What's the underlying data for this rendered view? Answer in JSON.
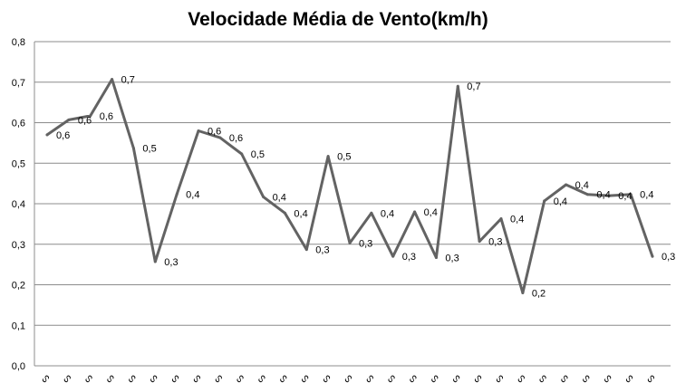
{
  "colors": {
    "line": "#636363",
    "grid": "#8c8c8c",
    "background": "#ffffff"
  },
  "chart_data": {
    "type": "line",
    "title": "Velocidade Média de Vento(km/h)",
    "xlabel": "",
    "ylabel": "",
    "ylim": [
      0,
      0.8
    ],
    "ytick_labels": [
      "0,0",
      "0,1",
      "0,2",
      "0,3",
      "0,4",
      "0,5",
      "0,6",
      "0,7",
      "0,8"
    ],
    "grid": true,
    "legend": "none",
    "categories": [
      "ᔕ",
      "ᔕ",
      "ᔕ",
      "ᔕ",
      "ᔕ",
      "ᔕ",
      "ᔕ",
      "ᔕ",
      "ᔕ",
      "ᔕ",
      "ᔕ",
      "ᔕ",
      "ᔕ",
      "ᔕ",
      "ᔕ",
      "ᔕ",
      "ᔕ",
      "ᔕ",
      "ᔕ",
      "ᔕ",
      "ᔕ",
      "ᔕ",
      "ᔕ",
      "ᔕ",
      "ᔕ",
      "ᔕ",
      "ᔕ",
      "ᔕ",
      "ᔕ"
    ],
    "series": [
      {
        "name": "Velocidade Média de Vento(km/h)",
        "values": [
          0.57,
          0.607,
          0.617,
          0.707,
          0.537,
          0.257,
          0.423,
          0.58,
          0.563,
          0.523,
          0.417,
          0.377,
          0.287,
          0.517,
          0.303,
          0.377,
          0.27,
          0.38,
          0.267,
          0.69,
          0.307,
          0.363,
          0.18,
          0.407,
          0.447,
          0.423,
          0.42,
          0.423,
          0.27
        ],
        "data_labels": [
          "0,6",
          "0,6",
          "0,6",
          "0,7",
          "0,5",
          "0,3",
          "0,4",
          "0,6",
          "0,6",
          "0,5",
          "0,4",
          "0,4",
          "0,3",
          "0,5",
          "0,3",
          "0,4",
          "0,3",
          "0,4",
          "0,3",
          "0,7",
          "0,3",
          "0,4",
          "0,2",
          "0,4",
          "0,4",
          "0,4",
          "0,4",
          "0,4",
          "0,3"
        ]
      }
    ]
  }
}
